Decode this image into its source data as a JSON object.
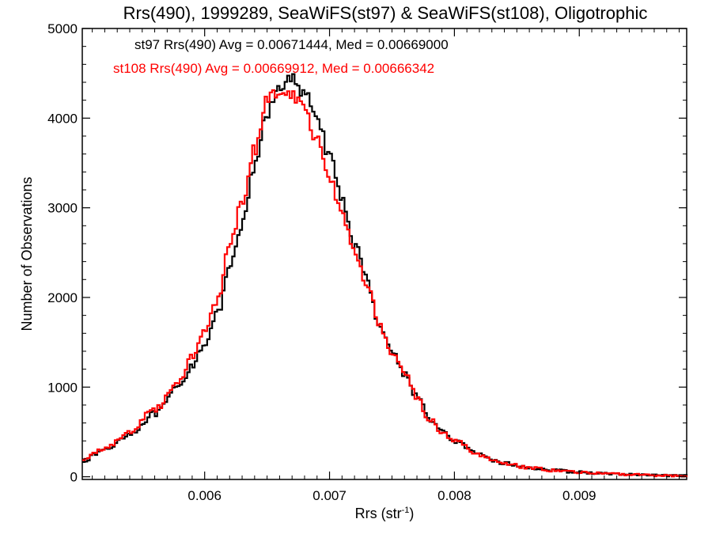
{
  "chart_data": {
    "type": "line",
    "title": "Rrs(490), 1999289, SeaWiFS(st97) & SeaWiFS(st108), Oligotrophic",
    "xlabel": "Rrs (str",
    "xlabel_sup": "-1",
    "xlabel_close": ")",
    "ylabel": "Number of Observations",
    "xlim": [
      0.00502,
      0.00986
    ],
    "ylim": [
      -30,
      5000
    ],
    "x_ticks": [
      0.006,
      0.007,
      0.008,
      0.009
    ],
    "x_tick_labels": [
      "0.006",
      "0.007",
      "0.008",
      "0.009"
    ],
    "y_ticks": [
      0,
      1000,
      2000,
      3000,
      4000,
      5000
    ],
    "y_tick_labels": [
      "0",
      "1000",
      "2000",
      "3000",
      "4000",
      "5000"
    ],
    "step_shape": "histogram",
    "grid": false,
    "legend": "top-left text annotations",
    "annotations": [
      {
        "text": "st97 Rrs(490) Avg = 0.00671444, Med = 0.00669000",
        "color": "#000000"
      },
      {
        "text": "st108 Rrs(490) Avg = 0.00669912, Med = 0.00666342",
        "color": "#ff0000"
      }
    ],
    "series": [
      {
        "color": "#000000",
        "x": [
          0.00502,
          0.0052,
          0.0054,
          0.0056,
          0.0058,
          0.0059,
          0.006,
          0.0061,
          0.0062,
          0.0063,
          0.0064,
          0.0065,
          0.0066,
          0.0067,
          0.0068,
          0.0069,
          0.007,
          0.0071,
          0.0072,
          0.0073,
          0.0074,
          0.0075,
          0.0076,
          0.0077,
          0.0078,
          0.0079,
          0.008,
          0.0082,
          0.0084,
          0.0086,
          0.0088,
          0.009,
          0.0092,
          0.0094,
          0.0096,
          0.00986
        ],
        "y": [
          180,
          300,
          480,
          700,
          1000,
          1250,
          1500,
          1800,
          2300,
          2800,
          3450,
          4050,
          4380,
          4420,
          4250,
          4050,
          3550,
          3100,
          2600,
          2200,
          1700,
          1400,
          1150,
          900,
          650,
          500,
          400,
          240,
          150,
          100,
          70,
          50,
          35,
          25,
          15,
          10
        ]
      },
      {
        "color": "#ff0000",
        "x": [
          0.00502,
          0.0052,
          0.0054,
          0.0056,
          0.0058,
          0.0059,
          0.006,
          0.0061,
          0.0062,
          0.0063,
          0.0064,
          0.0065,
          0.0066,
          0.0067,
          0.0068,
          0.0069,
          0.007,
          0.0071,
          0.0072,
          0.0073,
          0.0074,
          0.0075,
          0.0076,
          0.0077,
          0.0078,
          0.0079,
          0.008,
          0.0082,
          0.0084,
          0.0086,
          0.0088,
          0.009,
          0.0092,
          0.0094,
          0.0096,
          0.00986
        ],
        "y": [
          190,
          320,
          500,
          750,
          1080,
          1350,
          1620,
          1950,
          2550,
          3050,
          3650,
          4200,
          4330,
          4280,
          4100,
          3750,
          3350,
          2950,
          2500,
          2150,
          1680,
          1390,
          1140,
          890,
          640,
          500,
          400,
          240,
          150,
          100,
          70,
          50,
          35,
          25,
          15,
          10
        ]
      }
    ]
  }
}
